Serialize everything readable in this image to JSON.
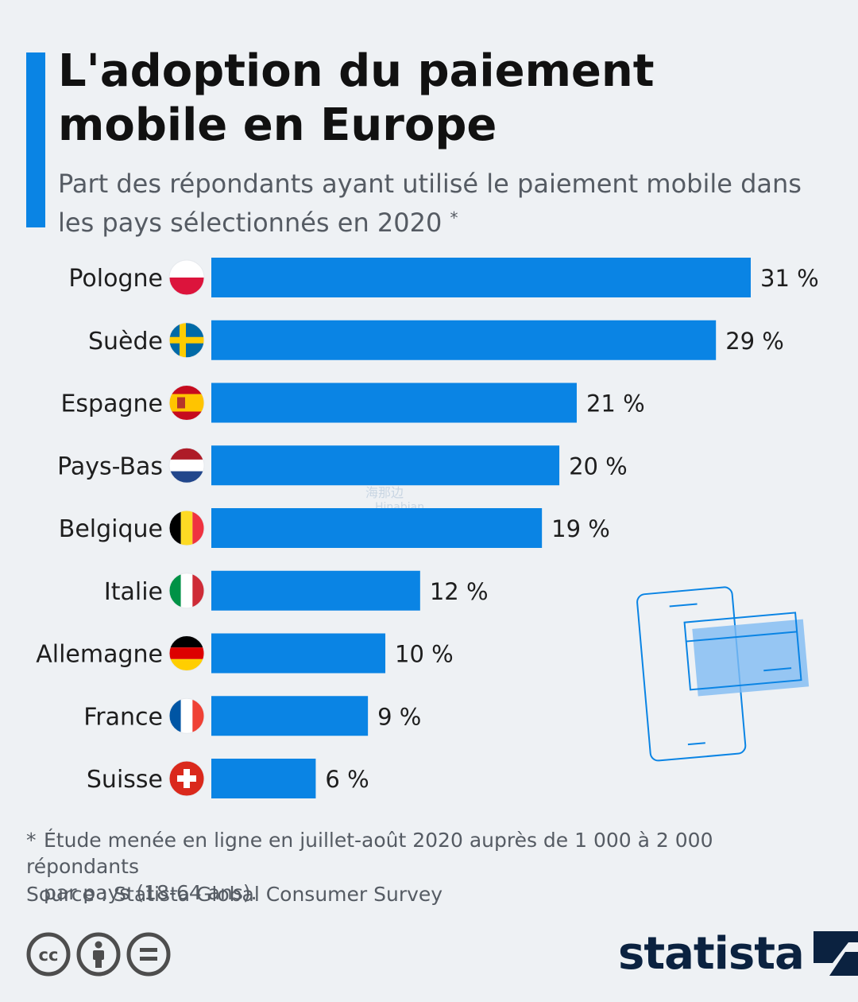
{
  "header": {
    "title": "L'adoption du paiement mobile en Europe",
    "subtitle": "Part des répondants ayant utilisé le paiement mobile dans les pays sélectionnés en 2020",
    "subtitle_marker": "*"
  },
  "colors": {
    "bar": "#0a84e4",
    "accent": "#0a84e4",
    "brand": "#0b2240"
  },
  "chart_data": {
    "type": "bar",
    "orientation": "horizontal",
    "title": "L'adoption du paiement mobile en Europe",
    "categories": [
      "Pologne",
      "Suède",
      "Espagne",
      "Pays-Bas",
      "Belgique",
      "Italie",
      "Allemagne",
      "France",
      "Suisse"
    ],
    "values": [
      31,
      29,
      21,
      20,
      19,
      12,
      10,
      9,
      6
    ],
    "value_labels": [
      "31 %",
      "29 %",
      "21 %",
      "20 %",
      "19 %",
      "12 %",
      "10 %",
      "9 %",
      "6 %"
    ],
    "flags": [
      "poland-flag-icon",
      "sweden-flag-icon",
      "spain-flag-icon",
      "netherlands-flag-icon",
      "belgium-flag-icon",
      "italy-flag-icon",
      "germany-flag-icon",
      "france-flag-icon",
      "switzerland-flag-icon"
    ],
    "unit": "%",
    "xlim": [
      0,
      31
    ],
    "grid": false,
    "xlabel": "",
    "ylabel": ""
  },
  "footer": {
    "note_marker": "*",
    "note_line1": "Étude menée en ligne en juillet-août 2020 auprès de 1 000 à 2 000 répondants",
    "note_line2": "par pays (18-64 ans).",
    "source": "Source : Statista Global Consumer Survey",
    "brand": "statista",
    "license_icons": [
      "cc-icon",
      "attribution-icon",
      "no-derivatives-icon"
    ]
  },
  "watermark": {
    "line1": "海那边",
    "line2": "Hinabian"
  }
}
